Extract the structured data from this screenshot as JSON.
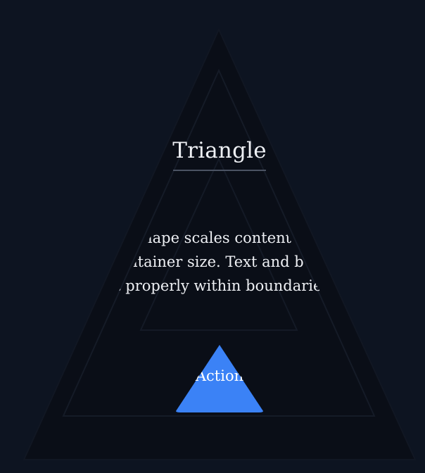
{
  "card": {
    "title": "Triangle",
    "description_lines": [
      "This shape scales content based",
      "on container size. Text and buttons",
      "fit properly within boundaries."
    ],
    "action_label": "Action"
  },
  "colors": {
    "background": "#0d1421",
    "outer_triangle": "#0a0e17",
    "inner_outline": "#151b27",
    "accent": "#3b82f6",
    "text": "#eef0f4",
    "rule": "#4b5363"
  },
  "icons": {
    "background": "triangle-outline",
    "button": "filled-triangle"
  }
}
